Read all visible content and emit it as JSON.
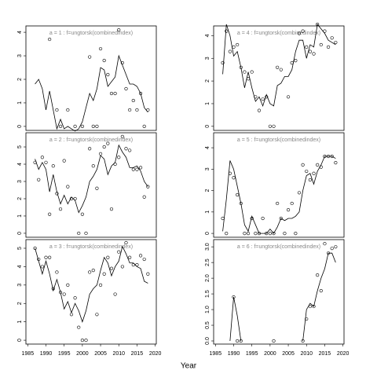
{
  "chart_data": {
    "type": "scatter",
    "xlabel": "Year",
    "xlim": [
      1984.5,
      2020.3
    ],
    "xticks": [
      1985,
      1990,
      1995,
      2000,
      2005,
      2010,
      2015,
      2020
    ],
    "years": [
      1987,
      1988,
      1989,
      1990,
      1991,
      1992,
      1993,
      1994,
      1995,
      1996,
      1997,
      1998,
      1999,
      2000,
      2001,
      2002,
      2003,
      2004,
      2005,
      2006,
      2007,
      2008,
      2009,
      2010,
      2011,
      2012,
      2013,
      2014,
      2015,
      2016,
      2017,
      2018
    ],
    "panels": [
      {
        "title": "a = 1 : f=ungtorsk(combinedindex)",
        "ylim": [
          -0.17,
          4.27
        ],
        "yticks": [
          0,
          1,
          2,
          3,
          4
        ],
        "points": [
          null,
          null,
          null,
          null,
          3.7,
          null,
          0.7,
          0,
          null,
          0.7,
          null,
          0,
          null,
          0,
          null,
          2.95,
          0,
          0,
          3.3,
          2.8,
          2.2,
          1.4,
          1.4,
          4.1,
          2.7,
          1.6,
          0.7,
          1.1,
          0.7,
          1.4,
          0,
          0.7
        ],
        "fit": [
          1.8,
          2.0,
          1.6,
          0.7,
          1.5,
          0.7,
          -0.1,
          0.3,
          -0.1,
          0,
          -0.1,
          -0.2,
          -0.1,
          0.2,
          0.8,
          1.4,
          1.1,
          1.6,
          2.5,
          2.4,
          1.7,
          1.9,
          2.1,
          3.0,
          2.6,
          2.2,
          1.8,
          1.8,
          1.7,
          1.4,
          0.8,
          0.6
        ]
      },
      {
        "title": "a = 2 : f=ungtorsk(combinedindex)",
        "ylim": [
          -0.23,
          5.82
        ],
        "yticks": [
          0,
          1,
          2,
          3,
          4,
          5
        ],
        "points": [
          4.1,
          3.1,
          4.4,
          4.1,
          1.1,
          3.9,
          2.3,
          1.4,
          4.2,
          2.7,
          2.0,
          2.0,
          0,
          1.1,
          0,
          4.9,
          3.9,
          2.6,
          4.6,
          5.0,
          5.2,
          1.4,
          4.0,
          4.4,
          5.6,
          4.9,
          4.8,
          3.7,
          3.7,
          3.8,
          2.1,
          2.7
        ],
        "fit": [
          4.3,
          3.7,
          4.1,
          3.7,
          2.4,
          3.4,
          2.4,
          1.7,
          2.2,
          1.7,
          2.1,
          1.9,
          1.2,
          1.6,
          2.1,
          3.0,
          3.3,
          3.7,
          4.5,
          4.3,
          3.4,
          3.9,
          4.1,
          5.1,
          4.7,
          4.4,
          3.8,
          3.8,
          3.9,
          3.6,
          3.0,
          2.7
        ]
      },
      {
        "title": "a = 3 : f=ungtorsk(combinedindex)",
        "ylim": [
          -0.21,
          5.47
        ],
        "yticks": [
          0,
          1,
          2,
          3,
          4,
          5
        ],
        "points": [
          5.0,
          4.4,
          4.0,
          4.5,
          4.5,
          2.8,
          3.7,
          2.6,
          2.5,
          3.0,
          1.4,
          2.3,
          0.7,
          0,
          0,
          3.7,
          3.8,
          1.4,
          3.0,
          3.6,
          4.5,
          3.9,
          2.5,
          4.8,
          4.0,
          5.3,
          4.5,
          4.1,
          4.1,
          4.6,
          4.4,
          3.6
        ],
        "fit": [
          5.0,
          4.3,
          3.6,
          4.3,
          3.6,
          2.7,
          3.3,
          2.6,
          1.7,
          2.1,
          1.5,
          2.0,
          1.6,
          1.0,
          1.6,
          2.5,
          2.8,
          3.0,
          3.8,
          4.5,
          4.2,
          3.5,
          4.0,
          4.3,
          5.1,
          4.7,
          4.2,
          4.2,
          4.0,
          3.9,
          3.2,
          3.1
        ]
      },
      {
        "title": "a = 4 : f=ungtorsk(combinedindex)",
        "ylim": [
          -0.18,
          4.43
        ],
        "yticks": [
          0,
          1,
          2,
          3,
          4
        ],
        "points": [
          2.8,
          4.2,
          3.3,
          3.5,
          3.6,
          2.6,
          2.4,
          2.1,
          2.4,
          1.3,
          0.7,
          1.2,
          1.3,
          0,
          0,
          2.6,
          2.5,
          null,
          1.3,
          2.8,
          2.9,
          4.1,
          4.2,
          3.5,
          3.3,
          3.2,
          4.5,
          3.6,
          4.2,
          3.5,
          3.9,
          3.7
        ],
        "fit": [
          2.3,
          4.5,
          4.0,
          3.1,
          3.3,
          2.6,
          1.7,
          2.4,
          1.7,
          1.1,
          1.3,
          0.9,
          1.4,
          1.0,
          0.9,
          1.8,
          1.9,
          2.2,
          2.2,
          2.5,
          3.3,
          3.8,
          3.8,
          3.0,
          3.6,
          3.5,
          4.5,
          4.3,
          4.1,
          3.8,
          3.7,
          3.6
        ]
      },
      {
        "title": "a = 5 : f=ungtorsk(combinedindex)",
        "ylim": [
          -0.18,
          4.7
        ],
        "yticks": [
          0,
          1,
          2,
          3,
          4
        ],
        "points": [
          0.7,
          0,
          2.8,
          2.6,
          1.8,
          1.4,
          0,
          0,
          0.7,
          0,
          0,
          0.7,
          0,
          0,
          0,
          1.4,
          0.7,
          0,
          1.1,
          1.4,
          0,
          1.9,
          3.2,
          2.9,
          2.5,
          2.8,
          3.2,
          3.1,
          3.6,
          3.6,
          3.6,
          3.3
        ],
        "fit": [
          0.1,
          1.6,
          3.4,
          3.0,
          2.2,
          1.4,
          0.4,
          0.1,
          0.8,
          0.4,
          0,
          0,
          0,
          0.2,
          0,
          0.3,
          0.7,
          0.6,
          0.7,
          0.7,
          0.8,
          1.0,
          2.0,
          2.7,
          2.8,
          2.3,
          2.9,
          3.2,
          3.6,
          3.6,
          3.6,
          3.5
        ]
      },
      {
        "title": "a = 6 : f=ungtorsk(combinedindex)",
        "ylim": [
          -0.1,
          3.23
        ],
        "yticks": [
          {
            "value": 0,
            "label": "0.0"
          },
          0.5,
          {
            "value": 1,
            "label": "1.0"
          },
          1.5,
          {
            "value": 2,
            "label": "2.0"
          },
          2.5,
          {
            "value": 3,
            "label": "3.0"
          }
        ],
        "points": [
          null,
          null,
          null,
          1.4,
          0,
          0,
          null,
          null,
          null,
          null,
          null,
          null,
          null,
          null,
          0,
          null,
          null,
          null,
          null,
          null,
          null,
          null,
          0,
          0.7,
          1.1,
          1.1,
          2.1,
          1.6,
          3.1,
          2.8,
          2.95,
          3.0
        ],
        "fit": [
          null,
          null,
          0,
          1.4,
          0.8,
          0,
          null,
          null,
          null,
          null,
          null,
          null,
          null,
          null,
          null,
          null,
          null,
          null,
          null,
          null,
          null,
          null,
          0,
          1.0,
          1.2,
          1.1,
          1.6,
          2.0,
          2.3,
          2.8,
          2.8,
          2.5
        ]
      }
    ]
  }
}
